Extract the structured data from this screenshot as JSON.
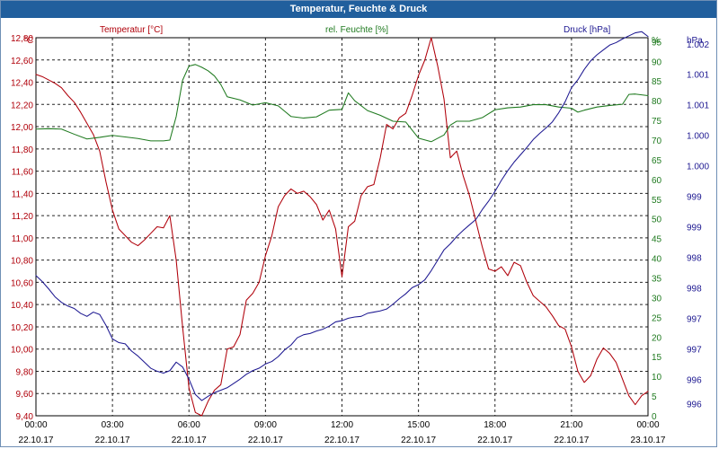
{
  "window": {
    "title": "Temperatur, Feuchte & Druck"
  },
  "legend": {
    "temperature": "Temperatur [°C]",
    "humidity": "rel. Feuchte [%]",
    "pressure": "Druck [hPa]"
  },
  "axes": {
    "temperature_unit": "°C",
    "humidity_unit": "%",
    "pressure_unit": "hPa"
  },
  "colors": {
    "temperature": "#b0000a",
    "humidity": "#1f7a1f",
    "pressure": "#1d1891",
    "title_bar": "#215f9d"
  },
  "chart_data": {
    "type": "line",
    "title": "Temperatur, Feuchte & Druck",
    "x_ticks": [
      {
        "time": "00:00",
        "date": "22.10.17",
        "hour": 0
      },
      {
        "time": "03:00",
        "date": "22.10.17",
        "hour": 3
      },
      {
        "time": "06:00",
        "date": "22.10.17",
        "hour": 6
      },
      {
        "time": "09:00",
        "date": "22.10.17",
        "hour": 9
      },
      {
        "time": "12:00",
        "date": "22.10.17",
        "hour": 12
      },
      {
        "time": "15:00",
        "date": "22.10.17",
        "hour": 15
      },
      {
        "time": "18:00",
        "date": "22.10.17",
        "hour": 18
      },
      {
        "time": "21:00",
        "date": "22.10.17",
        "hour": 21
      },
      {
        "time": "00:00",
        "date": "23.10.17",
        "hour": 24
      }
    ],
    "axes": {
      "temperature": {
        "label": "Temperatur [°C]",
        "unit": "°C",
        "ylim": [
          9.4,
          12.8
        ],
        "ticks": [
          "9,40",
          "9,60",
          "9,80",
          "10,00",
          "10,20",
          "10,40",
          "10,60",
          "10,80",
          "11,00",
          "11,20",
          "11,40",
          "11,60",
          "11,80",
          "12,00",
          "12,20",
          "12,40",
          "12,60",
          "12,80"
        ]
      },
      "humidity": {
        "label": "rel. Feuchte [%]",
        "unit": "%",
        "ylim": [
          0,
          96
        ],
        "ticks": [
          "0",
          "5",
          "10",
          "15",
          "20",
          "25",
          "30",
          "35",
          "40",
          "45",
          "50",
          "55",
          "60",
          "65",
          "70",
          "75",
          "80",
          "85",
          "90",
          "95",
          "%"
        ]
      },
      "pressure": {
        "label": "Druck [hPa]",
        "unit": "hPa",
        "ylim": [
          995.8,
          1002.0
        ],
        "ticks": [
          "996",
          "996",
          "997",
          "997",
          "998",
          "998",
          "999",
          "999",
          "1.000",
          "1.000",
          "1.001",
          "1.001",
          "1.002",
          "hPa"
        ]
      }
    },
    "series": [
      {
        "name": "Temperatur [°C]",
        "axis": "temperature",
        "color": "#b0000a",
        "points": [
          [
            0.0,
            12.47
          ],
          [
            0.25,
            12.45
          ],
          [
            0.5,
            12.42
          ],
          [
            0.75,
            12.39
          ],
          [
            1.0,
            12.35
          ],
          [
            1.25,
            12.28
          ],
          [
            1.5,
            12.22
          ],
          [
            1.75,
            12.13
          ],
          [
            2.0,
            12.03
          ],
          [
            2.25,
            11.93
          ],
          [
            2.5,
            11.78
          ],
          [
            2.75,
            11.5
          ],
          [
            3.0,
            11.25
          ],
          [
            3.25,
            11.08
          ],
          [
            3.5,
            11.02
          ],
          [
            3.75,
            10.96
          ],
          [
            4.0,
            10.93
          ],
          [
            4.25,
            10.98
          ],
          [
            4.5,
            11.04
          ],
          [
            4.75,
            11.1
          ],
          [
            5.0,
            11.09
          ],
          [
            5.25,
            11.2
          ],
          [
            5.5,
            10.8
          ],
          [
            5.75,
            10.2
          ],
          [
            6.0,
            9.65
          ],
          [
            6.25,
            9.43
          ],
          [
            6.5,
            9.4
          ],
          [
            6.75,
            9.53
          ],
          [
            7.0,
            9.63
          ],
          [
            7.25,
            9.68
          ],
          [
            7.5,
            10.0
          ],
          [
            7.75,
            10.02
          ],
          [
            8.0,
            10.13
          ],
          [
            8.25,
            10.44
          ],
          [
            8.5,
            10.5
          ],
          [
            8.75,
            10.6
          ],
          [
            9.0,
            10.84
          ],
          [
            9.25,
            11.02
          ],
          [
            9.5,
            11.28
          ],
          [
            9.75,
            11.38
          ],
          [
            10.0,
            11.44
          ],
          [
            10.25,
            11.4
          ],
          [
            10.5,
            11.42
          ],
          [
            10.75,
            11.37
          ],
          [
            11.0,
            11.3
          ],
          [
            11.25,
            11.16
          ],
          [
            11.5,
            11.25
          ],
          [
            11.75,
            11.08
          ],
          [
            12.0,
            10.65
          ],
          [
            12.25,
            11.1
          ],
          [
            12.5,
            11.15
          ],
          [
            12.75,
            11.38
          ],
          [
            13.0,
            11.46
          ],
          [
            13.25,
            11.48
          ],
          [
            13.5,
            11.72
          ],
          [
            13.75,
            12.02
          ],
          [
            14.0,
            11.98
          ],
          [
            14.25,
            12.08
          ],
          [
            14.5,
            12.12
          ],
          [
            14.75,
            12.28
          ],
          [
            15.0,
            12.46
          ],
          [
            15.25,
            12.6
          ],
          [
            15.5,
            12.8
          ],
          [
            15.75,
            12.55
          ],
          [
            16.0,
            12.25
          ],
          [
            16.25,
            11.72
          ],
          [
            16.5,
            11.78
          ],
          [
            16.75,
            11.56
          ],
          [
            17.0,
            11.38
          ],
          [
            17.25,
            11.15
          ],
          [
            17.5,
            10.92
          ],
          [
            17.75,
            10.72
          ],
          [
            18.0,
            10.7
          ],
          [
            18.25,
            10.74
          ],
          [
            18.5,
            10.66
          ],
          [
            18.75,
            10.78
          ],
          [
            19.0,
            10.75
          ],
          [
            19.25,
            10.6
          ],
          [
            19.5,
            10.48
          ],
          [
            19.75,
            10.43
          ],
          [
            20.0,
            10.38
          ],
          [
            20.25,
            10.3
          ],
          [
            20.5,
            10.21
          ],
          [
            20.75,
            10.18
          ],
          [
            21.0,
            10.02
          ],
          [
            21.25,
            9.8
          ],
          [
            21.5,
            9.7
          ],
          [
            21.75,
            9.76
          ],
          [
            22.0,
            9.91
          ],
          [
            22.25,
            10.01
          ],
          [
            22.5,
            9.96
          ],
          [
            22.75,
            9.88
          ],
          [
            23.0,
            9.73
          ],
          [
            23.25,
            9.58
          ],
          [
            23.5,
            9.5
          ],
          [
            23.75,
            9.58
          ],
          [
            24.0,
            9.62
          ]
        ]
      },
      {
        "name": "rel. Feuchte [%]",
        "axis": "humidity",
        "color": "#1f7a1f",
        "points": [
          [
            0.0,
            72.8
          ],
          [
            0.5,
            72.9
          ],
          [
            1.0,
            72.8
          ],
          [
            1.5,
            71.5
          ],
          [
            2.0,
            70.3
          ],
          [
            2.5,
            70.7
          ],
          [
            3.0,
            71.2
          ],
          [
            3.5,
            70.8
          ],
          [
            4.0,
            70.4
          ],
          [
            4.5,
            69.8
          ],
          [
            5.0,
            69.8
          ],
          [
            5.25,
            70.0
          ],
          [
            5.5,
            76.0
          ],
          [
            5.75,
            85.2
          ],
          [
            6.0,
            88.8
          ],
          [
            6.25,
            89.2
          ],
          [
            6.5,
            88.5
          ],
          [
            6.75,
            87.6
          ],
          [
            7.0,
            86.3
          ],
          [
            7.25,
            84.1
          ],
          [
            7.5,
            81.0
          ],
          [
            8.0,
            80.2
          ],
          [
            8.5,
            78.9
          ],
          [
            9.0,
            79.5
          ],
          [
            9.5,
            78.7
          ],
          [
            10.0,
            76.0
          ],
          [
            10.5,
            75.6
          ],
          [
            11.0,
            75.9
          ],
          [
            11.5,
            77.6
          ],
          [
            12.0,
            77.8
          ],
          [
            12.25,
            82.0
          ],
          [
            12.5,
            80.0
          ],
          [
            13.0,
            77.5
          ],
          [
            13.5,
            76.3
          ],
          [
            14.0,
            74.8
          ],
          [
            14.5,
            74.6
          ],
          [
            15.0,
            70.5
          ],
          [
            15.5,
            69.6
          ],
          [
            16.0,
            71.3
          ],
          [
            16.25,
            73.8
          ],
          [
            16.5,
            74.8
          ],
          [
            17.0,
            74.8
          ],
          [
            17.5,
            75.7
          ],
          [
            18.0,
            77.7
          ],
          [
            18.5,
            78.2
          ],
          [
            19.0,
            78.4
          ],
          [
            19.5,
            79.0
          ],
          [
            20.0,
            79.0
          ],
          [
            20.5,
            78.4
          ],
          [
            21.0,
            78.1
          ],
          [
            21.25,
            77.1
          ],
          [
            21.5,
            77.6
          ],
          [
            22.0,
            78.4
          ],
          [
            22.5,
            78.8
          ],
          [
            23.0,
            79.1
          ],
          [
            23.25,
            81.6
          ],
          [
            23.5,
            81.7
          ],
          [
            24.0,
            81.3
          ]
        ]
      },
      {
        "name": "Druck [hPa]",
        "axis": "pressure",
        "color": "#1d1891",
        "points": [
          [
            0.0,
            998.1
          ],
          [
            0.25,
            998.0
          ],
          [
            0.5,
            997.88
          ],
          [
            0.75,
            997.75
          ],
          [
            1.0,
            997.66
          ],
          [
            1.25,
            997.6
          ],
          [
            1.5,
            997.56
          ],
          [
            1.75,
            997.48
          ],
          [
            2.0,
            997.43
          ],
          [
            2.25,
            997.5
          ],
          [
            2.5,
            997.46
          ],
          [
            2.75,
            997.28
          ],
          [
            3.0,
            997.06
          ],
          [
            3.25,
            997.0
          ],
          [
            3.5,
            996.98
          ],
          [
            3.75,
            996.86
          ],
          [
            4.0,
            996.78
          ],
          [
            4.25,
            996.68
          ],
          [
            4.5,
            996.58
          ],
          [
            4.75,
            996.53
          ],
          [
            5.0,
            996.5
          ],
          [
            5.25,
            996.54
          ],
          [
            5.5,
            996.68
          ],
          [
            5.75,
            996.6
          ],
          [
            6.0,
            996.4
          ],
          [
            6.25,
            996.15
          ],
          [
            6.5,
            996.05
          ],
          [
            6.75,
            996.12
          ],
          [
            7.0,
            996.18
          ],
          [
            7.25,
            996.22
          ],
          [
            7.5,
            996.26
          ],
          [
            7.75,
            996.33
          ],
          [
            8.0,
            996.4
          ],
          [
            8.25,
            996.48
          ],
          [
            8.5,
            996.54
          ],
          [
            8.75,
            996.58
          ],
          [
            9.0,
            996.65
          ],
          [
            9.25,
            996.69
          ],
          [
            9.5,
            996.77
          ],
          [
            9.75,
            996.88
          ],
          [
            10.0,
            996.96
          ],
          [
            10.25,
            997.08
          ],
          [
            10.5,
            997.13
          ],
          [
            10.75,
            997.15
          ],
          [
            11.0,
            997.19
          ],
          [
            11.25,
            997.22
          ],
          [
            11.5,
            997.27
          ],
          [
            11.75,
            997.34
          ],
          [
            12.0,
            997.36
          ],
          [
            12.25,
            997.4
          ],
          [
            12.5,
            997.42
          ],
          [
            12.75,
            997.43
          ],
          [
            13.0,
            997.48
          ],
          [
            13.25,
            997.5
          ],
          [
            13.5,
            997.52
          ],
          [
            13.75,
            997.55
          ],
          [
            14.0,
            997.63
          ],
          [
            14.25,
            997.72
          ],
          [
            14.5,
            997.8
          ],
          [
            14.75,
            997.9
          ],
          [
            15.0,
            997.95
          ],
          [
            15.25,
            998.03
          ],
          [
            15.5,
            998.18
          ],
          [
            15.75,
            998.35
          ],
          [
            16.0,
            998.52
          ],
          [
            16.25,
            998.62
          ],
          [
            16.5,
            998.74
          ],
          [
            16.75,
            998.84
          ],
          [
            17.0,
            998.93
          ],
          [
            17.25,
            999.02
          ],
          [
            17.5,
            999.18
          ],
          [
            17.75,
            999.32
          ],
          [
            18.0,
            999.48
          ],
          [
            18.25,
            999.66
          ],
          [
            18.5,
            999.82
          ],
          [
            18.75,
            999.96
          ],
          [
            19.0,
            1000.08
          ],
          [
            19.25,
            1000.2
          ],
          [
            19.5,
            1000.33
          ],
          [
            19.75,
            1000.43
          ],
          [
            20.0,
            1000.52
          ],
          [
            20.25,
            1000.62
          ],
          [
            20.5,
            1000.77
          ],
          [
            20.75,
            1000.95
          ],
          [
            21.0,
            1001.18
          ],
          [
            21.25,
            1001.31
          ],
          [
            21.5,
            1001.48
          ],
          [
            21.75,
            1001.62
          ],
          [
            22.0,
            1001.72
          ],
          [
            22.25,
            1001.8
          ],
          [
            22.5,
            1001.88
          ],
          [
            22.75,
            1001.92
          ],
          [
            23.0,
            1001.98
          ],
          [
            23.25,
            1002.03
          ],
          [
            23.5,
            1002.08
          ],
          [
            23.75,
            1002.1
          ],
          [
            24.0,
            1002.02
          ]
        ]
      }
    ],
    "grid": true
  }
}
